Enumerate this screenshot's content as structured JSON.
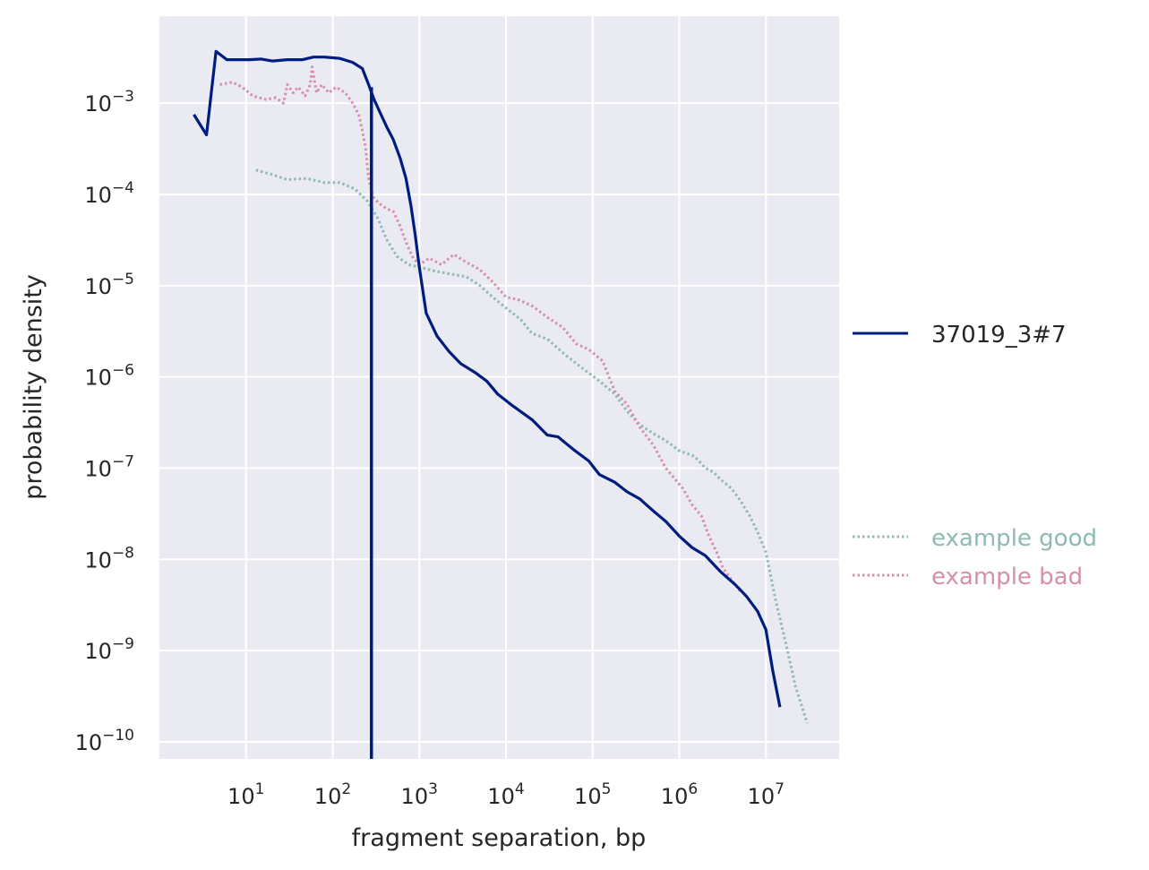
{
  "chart_data": {
    "type": "line",
    "xlabel": "fragment separation, bp",
    "ylabel": "probability density",
    "xscale": "log",
    "yscale": "log",
    "xlim": [
      1.0,
      70000000
    ],
    "ylim": [
      6.5e-11,
      0.009
    ],
    "x_ticks": [
      {
        "value": 10,
        "base": "10",
        "exp": "1"
      },
      {
        "value": 100,
        "base": "10",
        "exp": "2"
      },
      {
        "value": 1000,
        "base": "10",
        "exp": "3"
      },
      {
        "value": 10000,
        "base": "10",
        "exp": "4"
      },
      {
        "value": 100000,
        "base": "10",
        "exp": "5"
      },
      {
        "value": 1000000,
        "base": "10",
        "exp": "6"
      },
      {
        "value": 10000000,
        "base": "10",
        "exp": "7"
      }
    ],
    "y_ticks": [
      {
        "value": 0.001,
        "base": "10",
        "exp": "−3"
      },
      {
        "value": 0.0001,
        "base": "10",
        "exp": "−4"
      },
      {
        "value": 1e-05,
        "base": "10",
        "exp": "−5"
      },
      {
        "value": 1e-06,
        "base": "10",
        "exp": "−6"
      },
      {
        "value": 1e-07,
        "base": "10",
        "exp": "−7"
      },
      {
        "value": 1e-08,
        "base": "10",
        "exp": "−8"
      },
      {
        "value": 1e-09,
        "base": "10",
        "exp": "−9"
      },
      {
        "value": 1e-10,
        "base": "10",
        "exp": "−10"
      }
    ],
    "grid": true,
    "legend_position": "outside-right",
    "vertical_line": {
      "x": 280,
      "color": "#001c7f"
    },
    "series": [
      {
        "name": "37019_3#7",
        "color": "#001c7f",
        "style": "solid",
        "points": [
          [
            2.5,
            0.00075
          ],
          [
            3.5,
            0.00045
          ],
          [
            4.5,
            0.0037
          ],
          [
            6,
            0.003
          ],
          [
            8,
            0.003
          ],
          [
            11,
            0.003
          ],
          [
            15,
            0.00305
          ],
          [
            20,
            0.0029
          ],
          [
            30,
            0.003
          ],
          [
            45,
            0.003
          ],
          [
            60,
            0.0032
          ],
          [
            80,
            0.0032
          ],
          [
            120,
            0.0031
          ],
          [
            170,
            0.0028
          ],
          [
            220,
            0.0024
          ],
          [
            260,
            0.0016
          ],
          [
            300,
            0.0011
          ],
          [
            350,
            0.0008
          ],
          [
            420,
            0.00055
          ],
          [
            500,
            0.0004
          ],
          [
            600,
            0.00025
          ],
          [
            700,
            0.00015
          ],
          [
            800,
            7.5e-05
          ],
          [
            900,
            3.5e-05
          ],
          [
            1000,
            1.6e-05
          ],
          [
            1200,
            5e-06
          ],
          [
            1600,
            2.8e-06
          ],
          [
            2200,
            1.9e-06
          ],
          [
            3000,
            1.4e-06
          ],
          [
            4500,
            1.1e-06
          ],
          [
            6000,
            9e-07
          ],
          [
            8000,
            6.5e-07
          ],
          [
            12000,
            4.8e-07
          ],
          [
            20000,
            3.4e-07
          ],
          [
            30000,
            2.3e-07
          ],
          [
            40000,
            2.2e-07
          ],
          [
            60000,
            1.6e-07
          ],
          [
            90000,
            1.2e-07
          ],
          [
            120000,
            8.5e-08
          ],
          [
            180000,
            7e-08
          ],
          [
            250000,
            5.5e-08
          ],
          [
            350000,
            4.6e-08
          ],
          [
            500000,
            3.4e-08
          ],
          [
            700000,
            2.6e-08
          ],
          [
            1000000,
            1.8e-08
          ],
          [
            1400000,
            1.35e-08
          ],
          [
            2000000,
            1.1e-08
          ],
          [
            3000000,
            7.3e-09
          ],
          [
            4500000,
            5.2e-09
          ],
          [
            6000000,
            3.9e-09
          ],
          [
            8000000,
            2.7e-09
          ],
          [
            10000000,
            1.7e-09
          ],
          [
            12000000,
            6e-10
          ],
          [
            14500000,
            2.4e-10
          ]
        ]
      },
      {
        "name": "example good",
        "color": "#8fb9b2",
        "style": "dotted",
        "points": [
          [
            13,
            0.000185
          ],
          [
            20,
            0.000165
          ],
          [
            30,
            0.000145
          ],
          [
            50,
            0.00015
          ],
          [
            80,
            0.000135
          ],
          [
            120,
            0.000135
          ],
          [
            180,
            0.000115
          ],
          [
            250,
            8.5e-05
          ],
          [
            330,
            5.5e-05
          ],
          [
            420,
            3.2e-05
          ],
          [
            550,
            2.1e-05
          ],
          [
            750,
            1.7e-05
          ],
          [
            1000,
            1.6e-05
          ],
          [
            1500,
            1.45e-05
          ],
          [
            2200,
            1.35e-05
          ],
          [
            3500,
            1.25e-05
          ],
          [
            5000,
            1e-05
          ],
          [
            7000,
            7.5e-06
          ],
          [
            10000,
            5.7e-06
          ],
          [
            15000,
            4.2e-06
          ],
          [
            20000,
            3e-06
          ],
          [
            30000,
            2.6e-06
          ],
          [
            50000,
            1.7e-06
          ],
          [
            80000,
            1.2e-06
          ],
          [
            120000,
            9e-07
          ],
          [
            180000,
            6.5e-07
          ],
          [
            250000,
            4.2e-07
          ],
          [
            350000,
            3e-07
          ],
          [
            500000,
            2.4e-07
          ],
          [
            700000,
            2e-07
          ],
          [
            1000000,
            1.55e-07
          ],
          [
            1500000,
            1.35e-07
          ],
          [
            2000000,
            1e-07
          ],
          [
            2500000,
            9e-08
          ],
          [
            3000000,
            7.5e-08
          ],
          [
            4000000,
            6e-08
          ],
          [
            5000000,
            4.5e-08
          ],
          [
            6500000,
            3e-08
          ],
          [
            8000000,
            2e-08
          ],
          [
            10000000,
            1.2e-08
          ],
          [
            13000000,
            3.5e-09
          ],
          [
            17000000,
            1.2e-09
          ],
          [
            22000000,
            4e-10
          ],
          [
            30000000,
            1.6e-10
          ]
        ]
      },
      {
        "name": "example bad",
        "color": "#d68fab",
        "style": "dotted",
        "points": [
          [
            5,
            0.0016
          ],
          [
            7,
            0.0017
          ],
          [
            9,
            0.0015
          ],
          [
            12,
            0.0012
          ],
          [
            17,
            0.0011
          ],
          [
            22,
            0.00115
          ],
          [
            27,
            0.001
          ],
          [
            30,
            0.0016
          ],
          [
            35,
            0.0013
          ],
          [
            40,
            0.0015
          ],
          [
            48,
            0.0012
          ],
          [
            55,
            0.0016
          ],
          [
            58,
            0.0025
          ],
          [
            65,
            0.0013
          ],
          [
            75,
            0.0016
          ],
          [
            90,
            0.0013
          ],
          [
            110,
            0.0015
          ],
          [
            140,
            0.0013
          ],
          [
            170,
            0.001
          ],
          [
            200,
            0.00075
          ],
          [
            220,
            0.0005
          ],
          [
            240,
            0.00032
          ],
          [
            260,
            0.00015
          ],
          [
            290,
            9.5e-05
          ],
          [
            340,
            8e-05
          ],
          [
            420,
            7e-05
          ],
          [
            500,
            6.5e-05
          ],
          [
            600,
            4.5e-05
          ],
          [
            700,
            3e-05
          ],
          [
            850,
            2e-05
          ],
          [
            1000,
            1.7e-05
          ],
          [
            1300,
            2e-05
          ],
          [
            1800,
            1.7e-05
          ],
          [
            2500,
            2.2e-05
          ],
          [
            3500,
            1.8e-05
          ],
          [
            5000,
            1.5e-05
          ],
          [
            7000,
            1.1e-05
          ],
          [
            10000,
            7.5e-06
          ],
          [
            14000,
            7e-06
          ],
          [
            20000,
            6e-06
          ],
          [
            30000,
            4.5e-06
          ],
          [
            45000,
            3.5e-06
          ],
          [
            65000,
            2.3e-06
          ],
          [
            90000,
            2e-06
          ],
          [
            130000,
            1.5e-06
          ],
          [
            180000,
            7e-07
          ],
          [
            250000,
            5e-07
          ],
          [
            350000,
            2.8e-07
          ],
          [
            500000,
            1.8e-07
          ],
          [
            700000,
            1e-07
          ],
          [
            900000,
            7.5e-08
          ],
          [
            1100000,
            6e-08
          ],
          [
            1400000,
            4e-08
          ],
          [
            1800000,
            3e-08
          ],
          [
            2200000,
            1.8e-08
          ],
          [
            2700000,
            1.2e-08
          ],
          [
            3200000,
            8e-09
          ],
          [
            4000000,
            6e-09
          ],
          [
            5000000,
            4.5e-09
          ]
        ]
      }
    ]
  }
}
